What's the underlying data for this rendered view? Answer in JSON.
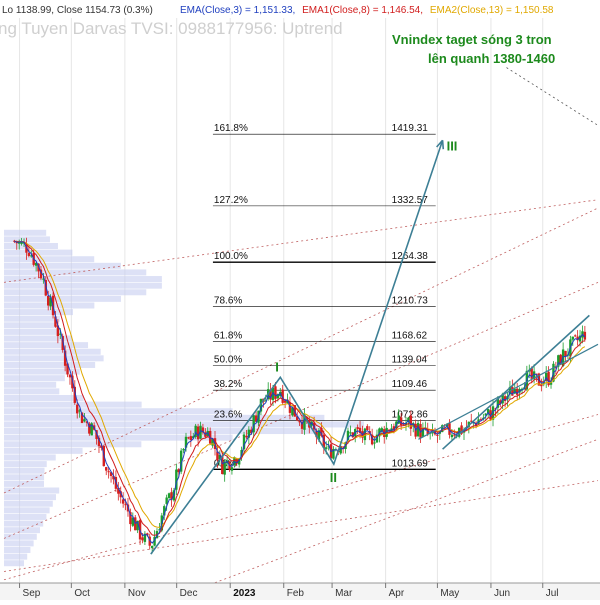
{
  "header": {
    "ohlc_prefix": "Lo 1138.99, Close 1154.73 (0.3%)",
    "ema_items": [
      {
        "text": "EMA(Close,3) = 1,151.33,",
        "color": "#1f3fbf"
      },
      {
        "text": "EMA1(Close,8) = 1,146.54,",
        "color": "#d11d1d"
      },
      {
        "text": "EMA2(Close,13) = 1,150.58",
        "color": "#e0a800"
      }
    ],
    "watermark": "ng Tuyen Darvas TVSI: 0988177956: Uptrend"
  },
  "annotation": {
    "line1": "Vnindex taget sóng 3 tron",
    "line2": "lên quanh 1380-1460"
  },
  "colors": {
    "up_candle": "#1b9d2f",
    "down_candle": "#d62020",
    "ema_fast": "#1f3fbf",
    "ema_mid": "#d11d1d",
    "ema_slow": "#e0a800",
    "wave_line": "#3d7f95",
    "annotation": "#1d8a1d",
    "fib_line": "#000000",
    "trend_dotted": "#c06060",
    "volume_profile": "#c7cdf0"
  },
  "chart_data": {
    "type": "candlestick",
    "title": "",
    "y_unit": "index points",
    "x_tick_labels": [
      "Sep",
      "Oct",
      "Nov",
      "Dec",
      "2023",
      "Feb",
      "Mar",
      "Apr",
      "May",
      "Jun",
      "Jul"
    ],
    "ylim": [
      870,
      1560
    ],
    "fibonacci_levels": [
      {
        "pct": "161.8%",
        "value": "1419.31"
      },
      {
        "pct": "127.2%",
        "value": "1332.57"
      },
      {
        "pct": "100.0%",
        "value": "1264.38"
      },
      {
        "pct": "78.6%",
        "value": "1210.73"
      },
      {
        "pct": "61.8%",
        "value": "1168.62"
      },
      {
        "pct": "50.0%",
        "value": "1139.04"
      },
      {
        "pct": "38.2%",
        "value": "1109.46"
      },
      {
        "pct": "23.6%",
        "value": "1072.86"
      },
      {
        "pct": "0.0%",
        "value": "1013.69"
      }
    ],
    "wave_labels": [
      "I",
      "II",
      "III"
    ],
    "wave_points": [
      {
        "date": "2022-11-16",
        "price": 911
      },
      {
        "date": "2023-01-30",
        "price": 1125
      },
      {
        "date": "2023-03-02",
        "price": 1020
      },
      {
        "date": "2023-05-04",
        "price": 1412
      }
    ],
    "uptrend_channel_points": [
      {
        "date": "2023-05-04",
        "price": 1038
      },
      {
        "date": "2023-07-28",
        "price": 1200
      }
    ],
    "closes": [
      {
        "date": "2022-08-29",
        "price": 1290
      },
      {
        "date": "2022-09-06",
        "price": 1282
      },
      {
        "date": "2022-09-14",
        "price": 1248
      },
      {
        "date": "2022-09-22",
        "price": 1190
      },
      {
        "date": "2022-09-29",
        "price": 1132
      },
      {
        "date": "2022-10-06",
        "price": 1080
      },
      {
        "date": "2022-10-14",
        "price": 1060
      },
      {
        "date": "2022-10-21",
        "price": 1020
      },
      {
        "date": "2022-10-28",
        "price": 985
      },
      {
        "date": "2022-11-04",
        "price": 958
      },
      {
        "date": "2022-11-10",
        "price": 935
      },
      {
        "date": "2022-11-16",
        "price": 920
      },
      {
        "date": "2022-11-22",
        "price": 955
      },
      {
        "date": "2022-11-29",
        "price": 990
      },
      {
        "date": "2022-12-06",
        "price": 1045
      },
      {
        "date": "2022-12-13",
        "price": 1060
      },
      {
        "date": "2022-12-20",
        "price": 1058
      },
      {
        "date": "2022-12-27",
        "price": 1018
      },
      {
        "date": "2023-01-05",
        "price": 1030
      },
      {
        "date": "2023-01-12",
        "price": 1060
      },
      {
        "date": "2023-01-19",
        "price": 1095
      },
      {
        "date": "2023-01-30",
        "price": 1110
      },
      {
        "date": "2023-02-06",
        "price": 1085
      },
      {
        "date": "2023-02-13",
        "price": 1070
      },
      {
        "date": "2023-02-20",
        "price": 1055
      },
      {
        "date": "2023-02-27",
        "price": 1035
      },
      {
        "date": "2023-03-06",
        "price": 1045
      },
      {
        "date": "2023-03-14",
        "price": 1060
      },
      {
        "date": "2023-03-22",
        "price": 1050
      },
      {
        "date": "2023-03-30",
        "price": 1060
      },
      {
        "date": "2023-04-07",
        "price": 1068
      },
      {
        "date": "2023-04-14",
        "price": 1070
      },
      {
        "date": "2023-04-21",
        "price": 1060
      },
      {
        "date": "2023-04-28",
        "price": 1052
      },
      {
        "date": "2023-05-08",
        "price": 1060
      },
      {
        "date": "2023-05-16",
        "price": 1062
      },
      {
        "date": "2023-05-23",
        "price": 1072
      },
      {
        "date": "2023-05-31",
        "price": 1080
      },
      {
        "date": "2023-06-07",
        "price": 1095
      },
      {
        "date": "2023-06-14",
        "price": 1110
      },
      {
        "date": "2023-06-21",
        "price": 1125
      },
      {
        "date": "2023-06-28",
        "price": 1120
      },
      {
        "date": "2023-07-05",
        "price": 1125
      },
      {
        "date": "2023-07-12",
        "price": 1150
      },
      {
        "date": "2023-07-19",
        "price": 1165
      },
      {
        "date": "2023-07-26",
        "price": 1180
      }
    ]
  }
}
